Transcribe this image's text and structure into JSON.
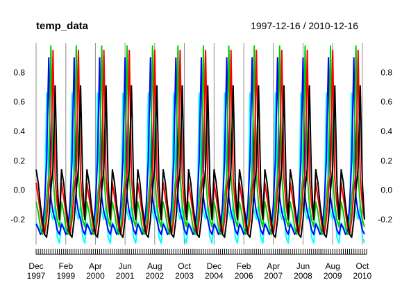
{
  "chart_data": {
    "type": "line",
    "title": "temp_data",
    "date_range": "1997-12-16 / 2010-12-16",
    "x_start": "1997-12-16",
    "x_end": "2010-12-16",
    "ylim": [
      -0.37,
      1.0
    ],
    "yticks": [
      "-0.2",
      "0.0",
      "0.2",
      "0.4",
      "0.6",
      "0.8"
    ],
    "grid": true,
    "xtick_labels": [
      {
        "date": "1997-12-16",
        "month": "Dec",
        "year": "1997"
      },
      {
        "date": "1999-02-16",
        "month": "Feb",
        "year": "1999"
      },
      {
        "date": "2000-04-16",
        "month": "Apr",
        "year": "2000"
      },
      {
        "date": "2001-06-16",
        "month": "Jun",
        "year": "2001"
      },
      {
        "date": "2002-08-16",
        "month": "Aug",
        "year": "2002"
      },
      {
        "date": "2003-10-16",
        "month": "Oct",
        "year": "2003"
      },
      {
        "date": "2004-12-16",
        "month": "Dec",
        "year": "2004"
      },
      {
        "date": "2006-02-16",
        "month": "Feb",
        "year": "2006"
      },
      {
        "date": "2007-04-16",
        "month": "Apr",
        "year": "2007"
      },
      {
        "date": "2008-06-16",
        "month": "Jun",
        "year": "2008"
      },
      {
        "date": "2009-08-16",
        "month": "Aug",
        "year": "2009"
      },
      {
        "date": "2010-10-16",
        "month": "Oct",
        "year": "2010"
      }
    ],
    "series": [
      {
        "color": "#00ffff",
        "values": [
          -0.22,
          -0.25,
          -0.28,
          -0.3,
          -0.27,
          0.66,
          -0.05,
          -0.15,
          -0.2,
          -0.1,
          -0.32,
          -0.36
        ]
      },
      {
        "color": "#0000ff",
        "values": [
          -0.23,
          -0.26,
          -0.3,
          -0.28,
          -0.1,
          0.2,
          0.9,
          -0.05,
          -0.15,
          -0.2,
          -0.27,
          -0.3
        ]
      },
      {
        "color": "#00cc00",
        "values": [
          -0.08,
          -0.15,
          -0.25,
          -0.3,
          -0.28,
          -0.05,
          0.1,
          0.98,
          0.1,
          -0.1,
          -0.2,
          -0.25
        ]
      },
      {
        "color": "#ff0000",
        "values": [
          0.05,
          -0.05,
          -0.15,
          -0.25,
          -0.3,
          -0.2,
          0.0,
          0.12,
          0.95,
          0.08,
          -0.1,
          -0.2
        ]
      },
      {
        "color": "#000000",
        "values": [
          0.14,
          0.05,
          -0.1,
          -0.2,
          -0.3,
          -0.32,
          -0.2,
          0.0,
          0.15,
          0.71,
          0.05,
          -0.2
        ]
      }
    ]
  }
}
